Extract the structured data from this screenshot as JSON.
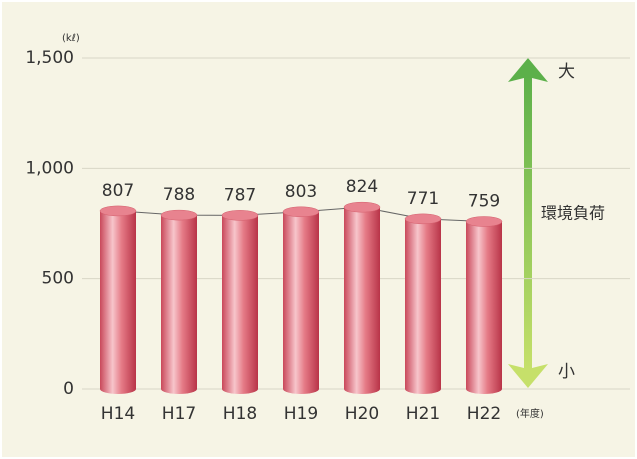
{
  "chart_data": {
    "type": "bar",
    "categories": [
      "H14",
      "H17",
      "H18",
      "H19",
      "H20",
      "H21",
      "H22"
    ],
    "values": [
      807,
      788,
      787,
      803,
      824,
      771,
      759
    ],
    "color": "#e06a78",
    "ylim": [
      0,
      1500
    ],
    "yticks": [
      0,
      500,
      {
        "value": 1000,
        "label": "1,000"
      },
      {
        "value": 1500,
        "label": "1,500"
      }
    ],
    "grid": true,
    "y_unit": "(kℓ)",
    "x_unit": "(年度)",
    "annotations": {
      "top": "大",
      "bottom": "小",
      "label": "環境負荷"
    }
  }
}
